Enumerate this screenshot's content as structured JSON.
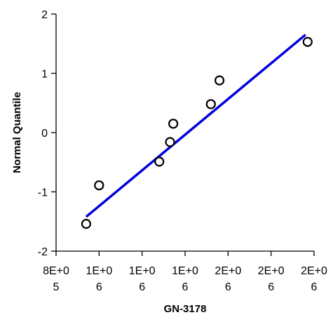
{
  "chart_data": {
    "type": "scatter",
    "title": "",
    "xlabel": "GN-3178",
    "ylabel": "Normal Quantile",
    "xlim": [
      800000,
      2000000
    ],
    "ylim": [
      -2,
      2
    ],
    "x_tick_values": [
      800000,
      1000000,
      1200000,
      1400000,
      1600000,
      1800000,
      2000000
    ],
    "x_tick_labels": [
      [
        "8E+0",
        "5"
      ],
      [
        "1E+0",
        "6"
      ],
      [
        "1E+0",
        "6"
      ],
      [
        "1E+0",
        "6"
      ],
      [
        "2E+0",
        "6"
      ],
      [
        "2E+0",
        "6"
      ],
      [
        "2E+0",
        "6"
      ]
    ],
    "y_tick_values": [
      -2,
      -1,
      0,
      1,
      2
    ],
    "y_tick_labels": [
      "-2",
      "-1",
      "0",
      "1",
      "2"
    ],
    "grid": false,
    "legend": "none",
    "series": [
      {
        "x": [
          940000,
          1000000,
          1280000,
          1330000,
          1345000,
          1520000,
          1560000,
          1970000
        ],
        "y": [
          -1.54,
          -0.89,
          -0.49,
          -0.16,
          0.15,
          0.48,
          0.88,
          1.53
        ]
      }
    ],
    "fit_line": {
      "x": [
        940000,
        1960000
      ],
      "y": [
        -1.42,
        1.65
      ],
      "color": "#0000dd"
    }
  }
}
